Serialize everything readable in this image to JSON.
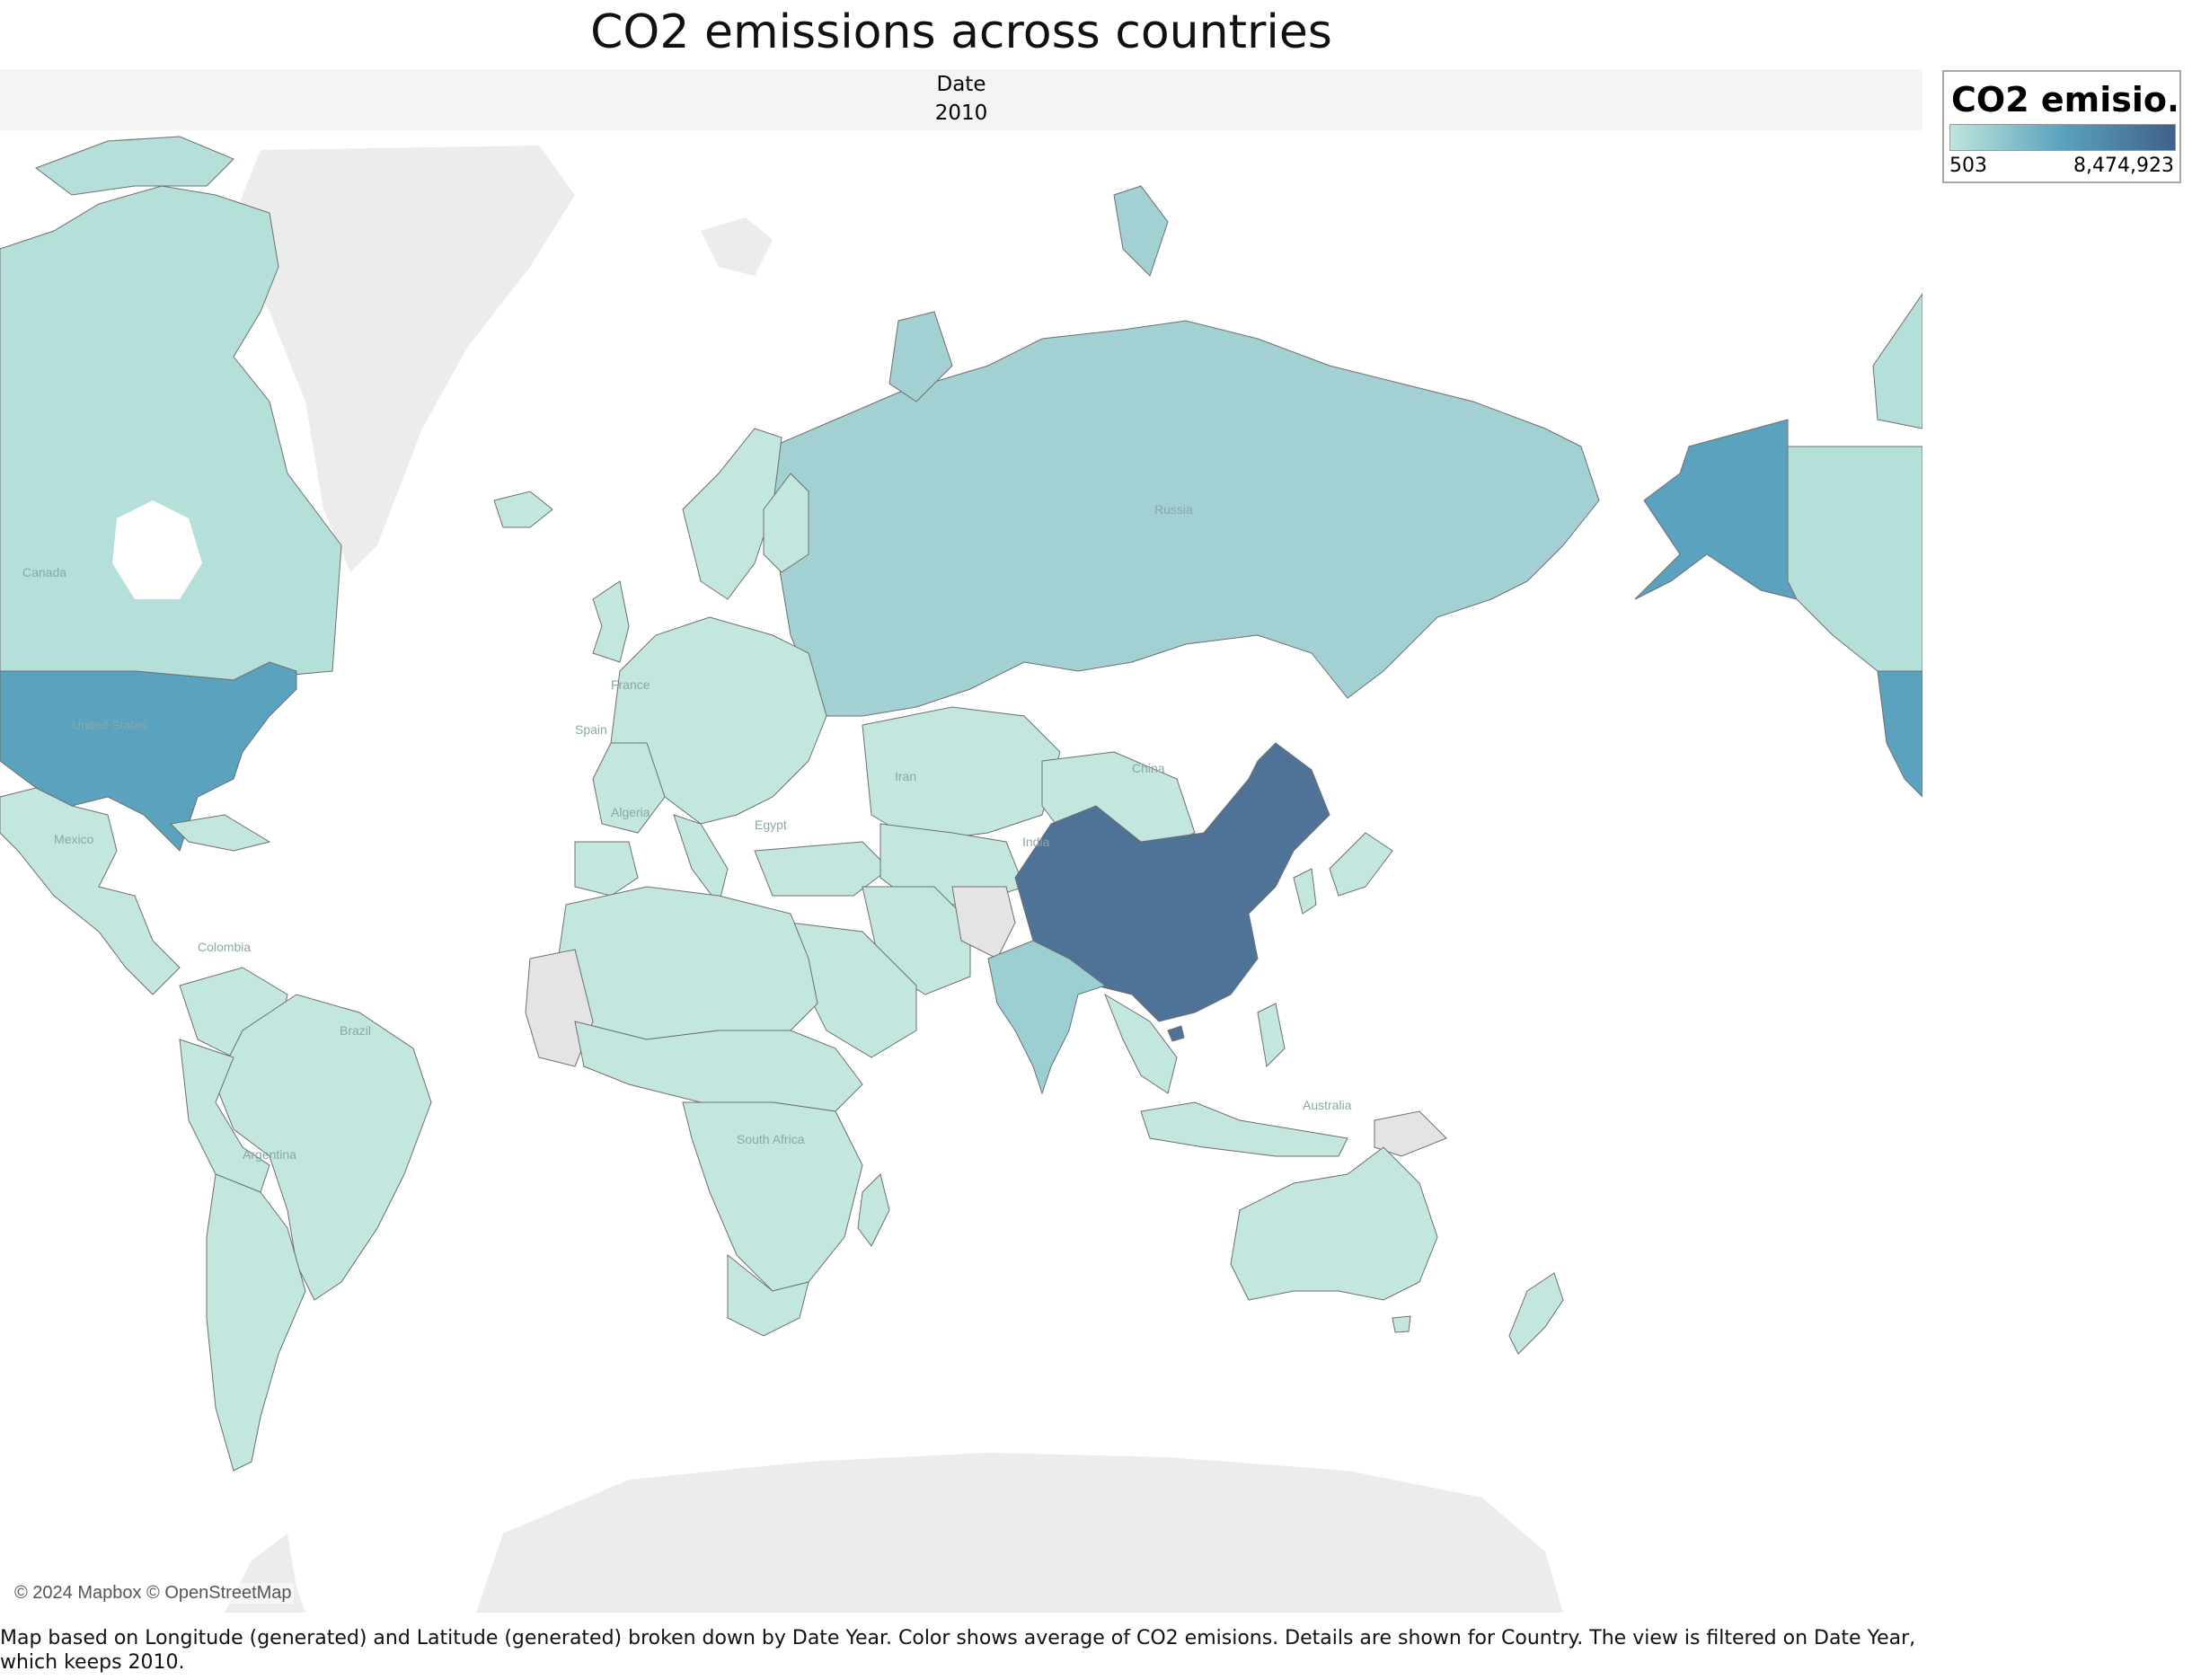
{
  "title": "CO2 emissions across countries",
  "header": {
    "label": "Date",
    "year": "2010"
  },
  "legend": {
    "title": "CO2 emisio..",
    "min_label": "503",
    "max_label": "8,474,923",
    "min": 503,
    "max": 8474923,
    "colors": {
      "low": "#bfe5dc",
      "mid": "#5aa2be",
      "high": "#3f6189"
    }
  },
  "map": {
    "colors": {
      "no_data": "#e4e4e4",
      "land_background": "#ececec",
      "border": "#6f6f6f",
      "china": "#4e7397",
      "united_states": "#5aa2be",
      "russia": "#a2d0d3",
      "india": "#9ccfd2",
      "canada": "#b4e0d9",
      "other": "#c3e6df"
    },
    "country_labels": {
      "canada": "Canada",
      "united_states": "United States",
      "mexico": "Mexico",
      "colombia": "Colombia",
      "brazil": "Brazil",
      "argentina": "Argentina",
      "russia": "Russia",
      "china": "China",
      "india": "India",
      "iran": "Iran",
      "algeria": "Algeria",
      "egypt": "Egypt",
      "south_africa": "South Africa",
      "australia": "Australia",
      "france": "France",
      "spain": "Spain"
    }
  },
  "attribution": "© 2024 Mapbox © OpenStreetMap",
  "caption": "Map based on Longitude (generated) and Latitude (generated) broken down by Date Year.  Color shows average of CO2 emisions.  Details are shown for Country. The view is filtered on Date Year, which keeps 2010."
}
